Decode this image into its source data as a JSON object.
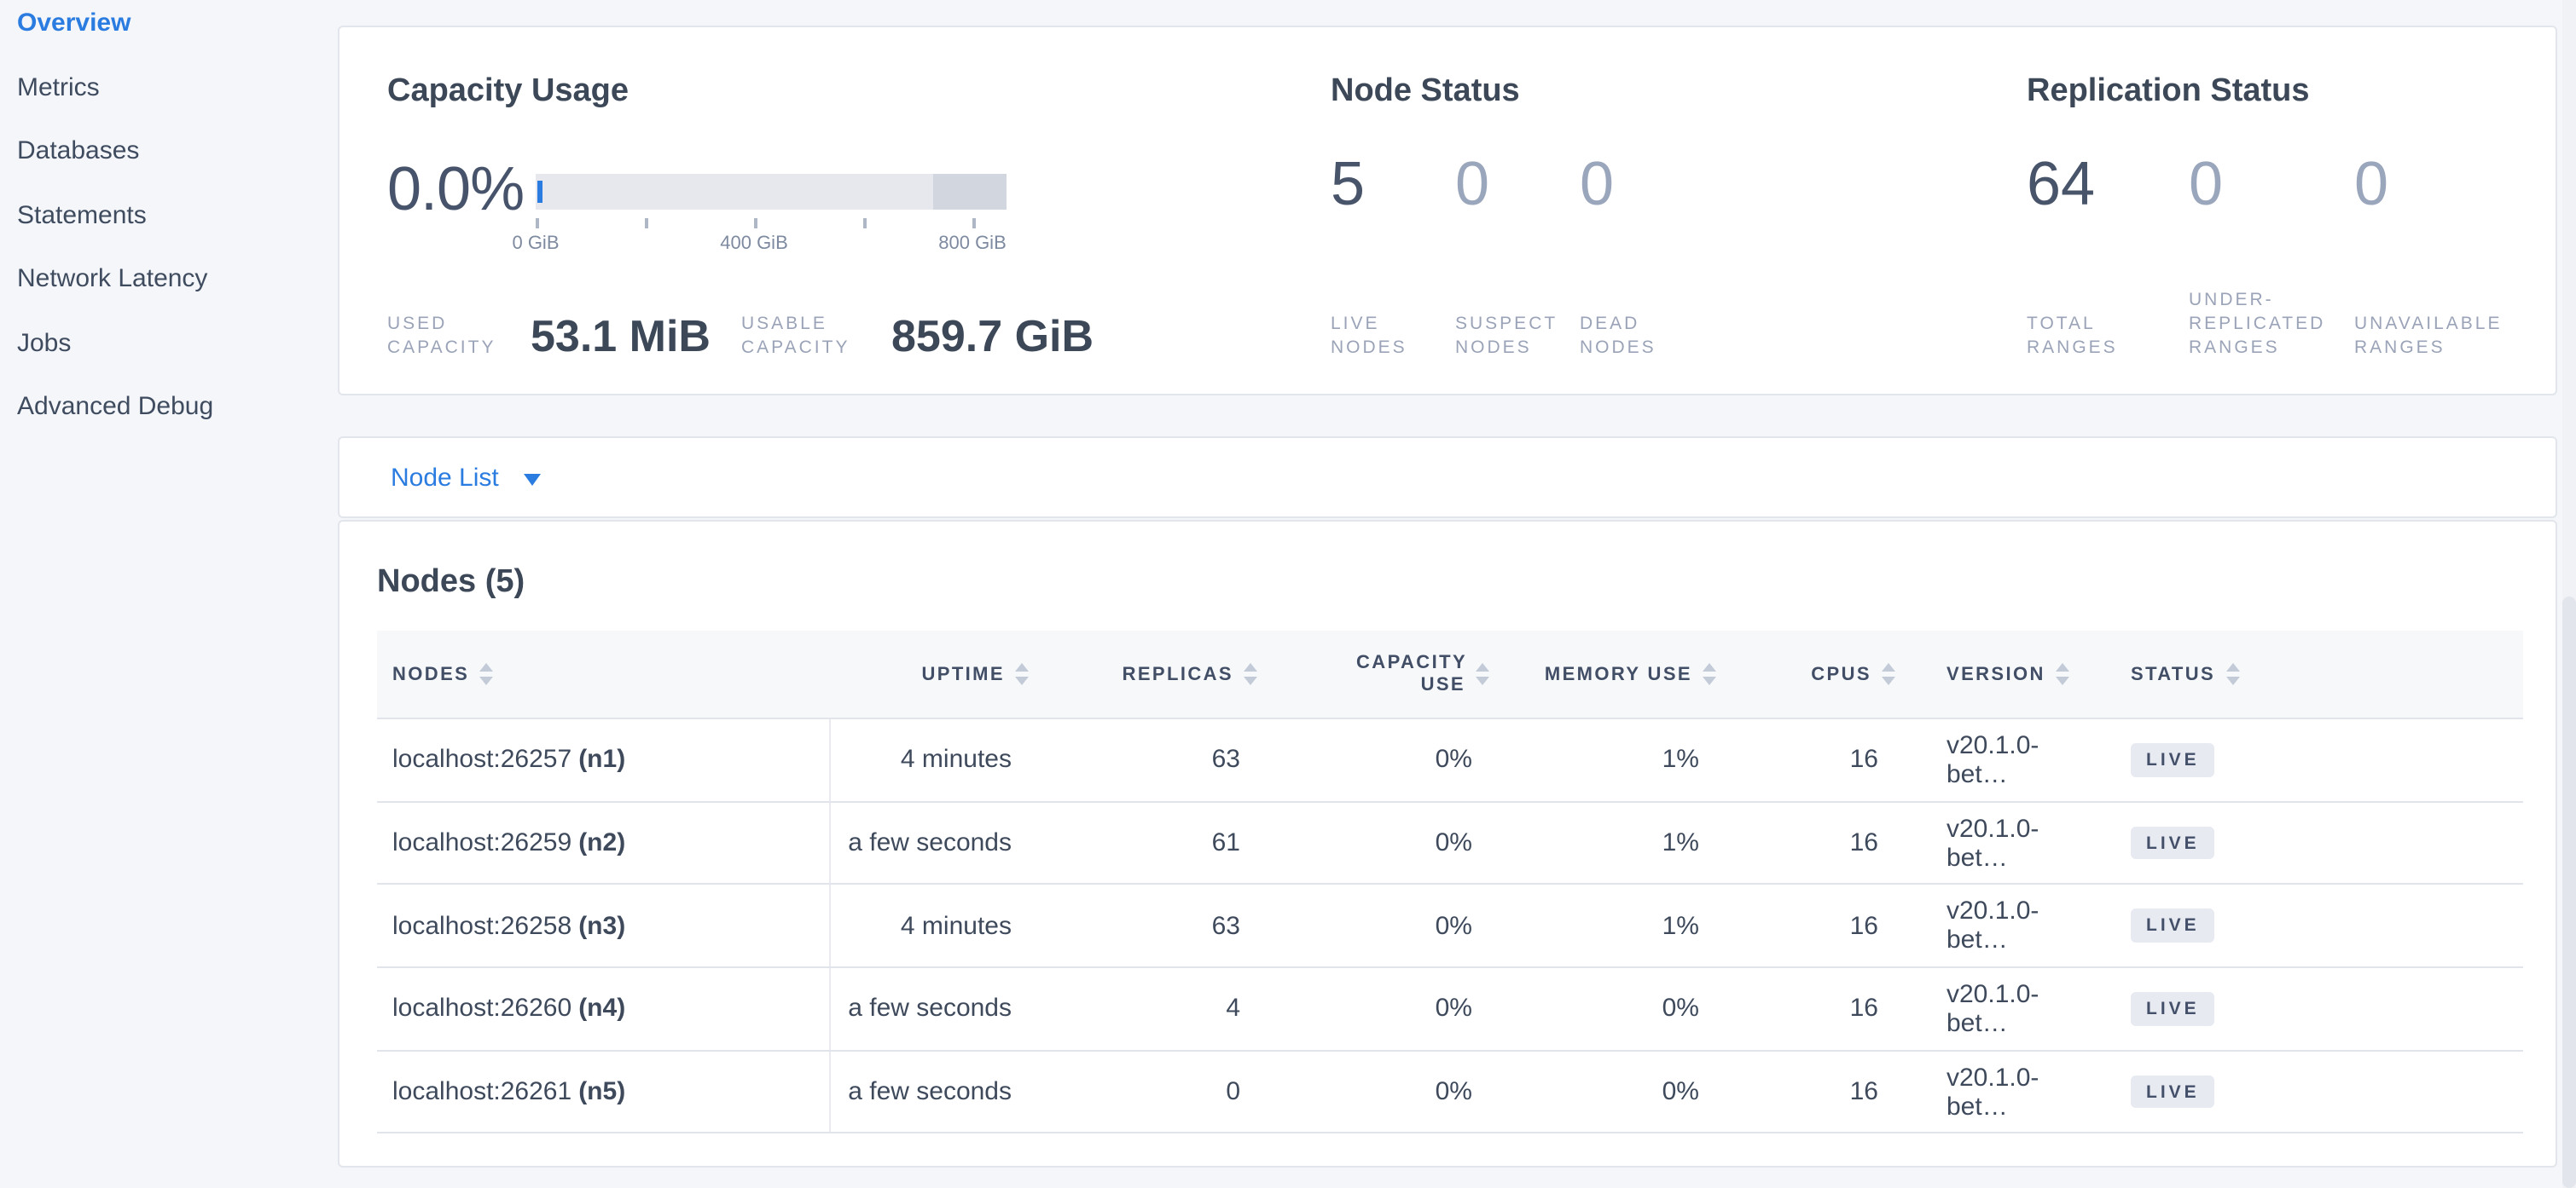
{
  "colors": {
    "accent_blue": "#2b7ce0",
    "dark_text": "#3c4858",
    "muted_number": "#9aa6bb",
    "bar_light": "#e6e8ee",
    "bar_dark": "#d2d6de",
    "badge_bg": "#e7eaf1"
  },
  "sidebar": {
    "items": [
      {
        "label": "Overview",
        "active": true
      },
      {
        "label": "Metrics",
        "active": false
      },
      {
        "label": "Databases",
        "active": false
      },
      {
        "label": "Statements",
        "active": false
      },
      {
        "label": "Network Latency",
        "active": false
      },
      {
        "label": "Jobs",
        "active": false
      },
      {
        "label": "Advanced Debug",
        "active": false
      }
    ]
  },
  "capacity": {
    "title": "Capacity Usage",
    "percent": "0.0%",
    "ticks": [
      "0 GiB",
      "400 GiB",
      "800 GiB"
    ],
    "used_label": "USED CAPACITY",
    "used_value": "53.1 MiB",
    "usable_label": "USABLE CAPACITY",
    "usable_value": "859.7 GiB"
  },
  "node_status": {
    "title": "Node Status",
    "stats": [
      {
        "value": "5",
        "label": "LIVE NODES",
        "muted": false
      },
      {
        "value": "0",
        "label": "SUSPECT NODES",
        "muted": true
      },
      {
        "value": "0",
        "label": "DEAD NODES",
        "muted": true
      }
    ]
  },
  "replication_status": {
    "title": "Replication Status",
    "stats": [
      {
        "value": "64",
        "label": "TOTAL RANGES",
        "muted": false
      },
      {
        "value": "0",
        "label": "UNDER-REPLICATED RANGES",
        "muted": true
      },
      {
        "value": "0",
        "label": "UNAVAILABLE RANGES",
        "muted": true
      }
    ]
  },
  "node_list": {
    "label": "Node List"
  },
  "nodes_table": {
    "title": "Nodes (5)",
    "columns": [
      {
        "id": "nodes",
        "label": "NODES"
      },
      {
        "id": "uptime",
        "label": "UPTIME"
      },
      {
        "id": "replicas",
        "label": "REPLICAS"
      },
      {
        "id": "capacity_use",
        "label": "CAPACITY USE"
      },
      {
        "id": "memory_use",
        "label": "MEMORY USE"
      },
      {
        "id": "cpus",
        "label": "CPUS"
      },
      {
        "id": "version",
        "label": "VERSION"
      },
      {
        "id": "status",
        "label": "STATUS"
      }
    ],
    "rows": [
      {
        "address": "localhost:26257",
        "node_id": "(n1)",
        "uptime": "4 minutes",
        "replicas": "63",
        "capacity_use": "0%",
        "memory_use": "1%",
        "cpus": "16",
        "version": "v20.1.0-bet…",
        "status": "LIVE"
      },
      {
        "address": "localhost:26259",
        "node_id": "(n2)",
        "uptime": "a few seconds",
        "replicas": "61",
        "capacity_use": "0%",
        "memory_use": "1%",
        "cpus": "16",
        "version": "v20.1.0-bet…",
        "status": "LIVE"
      },
      {
        "address": "localhost:26258",
        "node_id": "(n3)",
        "uptime": "4 minutes",
        "replicas": "63",
        "capacity_use": "0%",
        "memory_use": "1%",
        "cpus": "16",
        "version": "v20.1.0-bet…",
        "status": "LIVE"
      },
      {
        "address": "localhost:26260",
        "node_id": "(n4)",
        "uptime": "a few seconds",
        "replicas": "4",
        "capacity_use": "0%",
        "memory_use": "0%",
        "cpus": "16",
        "version": "v20.1.0-bet…",
        "status": "LIVE"
      },
      {
        "address": "localhost:26261",
        "node_id": "(n5)",
        "uptime": "a few seconds",
        "replicas": "0",
        "capacity_use": "0%",
        "memory_use": "0%",
        "cpus": "16",
        "version": "v20.1.0-bet…",
        "status": "LIVE"
      }
    ]
  }
}
